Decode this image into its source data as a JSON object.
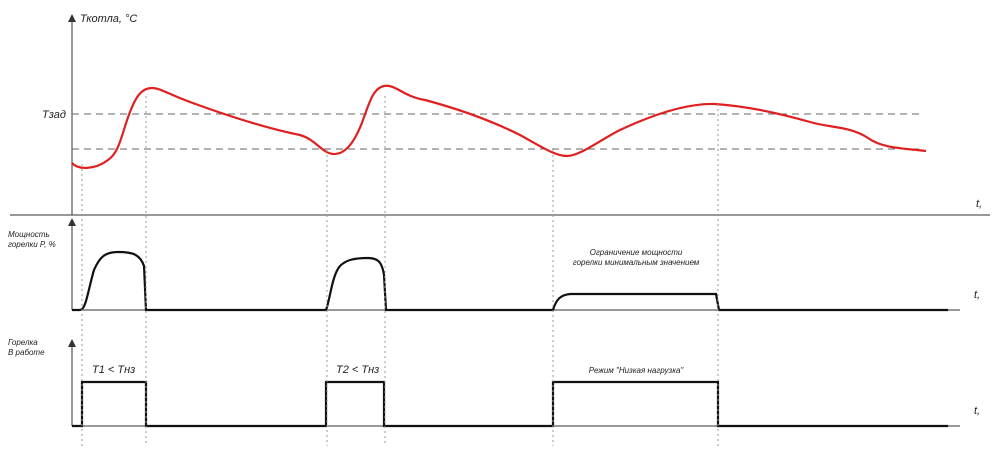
{
  "axes": {
    "temp_axis_title": "Ткотла, °C",
    "set_temp_label": "Тзад",
    "time_label_top": "t,",
    "time_label_mid": "t,",
    "time_label_bottom": "t,",
    "power_axis_title_line1": "Мощность",
    "power_axis_title_line2": "горелки P, %",
    "burner_axis_title_line1": "Горелка",
    "burner_axis_title_line2": "В работе"
  },
  "annotations": {
    "limit_line1": "Ограничение мощности",
    "limit_line2": "горелки минимальным значением",
    "interval1": "T1 < Tнз",
    "interval2": "T2 < Tнз",
    "low_load_mode": "Режим \"Низкая нагрузка\""
  },
  "colors": {
    "temperature_curve": "#e02020",
    "signal_lines": "#111111",
    "axes": "#333333",
    "dashed_guides": "#666666",
    "dotted_guides": "#999999"
  }
}
